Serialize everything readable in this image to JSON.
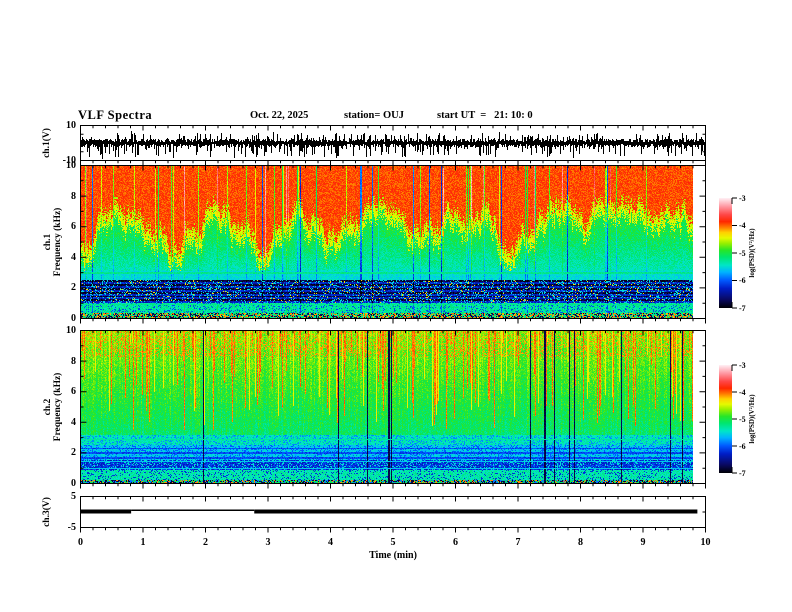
{
  "header": {
    "title": "VLF Spectra",
    "date": "Oct. 22, 2025",
    "station": "station= OUJ",
    "start_ut": "start UT  =   21: 10: 0"
  },
  "panels": {
    "ch1_wave": {
      "ylabel": "ch.1(V)",
      "yticks": [
        10,
        -10
      ],
      "ylim": [
        -10,
        10
      ]
    },
    "ch1_spec": {
      "ylabel_line1": "ch.1",
      "ylabel_line2": "Frequency (kHz)",
      "yticks": [
        10,
        8,
        6,
        4,
        2,
        0
      ],
      "ylim": [
        0,
        10
      ]
    },
    "ch2_spec": {
      "ylabel_line1": "ch.2",
      "ylabel_line2": "Frequency (kHz)",
      "yticks": [
        10,
        8,
        6,
        4,
        2,
        0
      ],
      "ylim": [
        0,
        10
      ]
    },
    "ch3_wave": {
      "ylabel": "ch.3(V)",
      "yticks": [
        5,
        -5
      ],
      "ylim": [
        -5,
        5
      ]
    }
  },
  "xaxis": {
    "label": "Time (min)",
    "ticks": [
      0,
      1,
      2,
      3,
      4,
      5,
      6,
      7,
      8,
      9,
      10
    ],
    "minor_step": 0.2
  },
  "colorbar": {
    "label": "log(PSD)(V²/Hz)",
    "ticks": [
      -3,
      -4,
      -5,
      -6,
      -7
    ],
    "range": [
      -3,
      -7
    ]
  },
  "colors": {
    "frame": "#000000",
    "scale_white": "#ffebf0",
    "scale_red": "#ff2800",
    "scale_yellow": "#e6fa00",
    "scale_green": "#28e628",
    "scale_cyan": "#00b4ff",
    "scale_blue": "#005aff",
    "scale_black": "#00000a"
  },
  "chart_data": {
    "type": "heatmap",
    "title": "VLF Spectra",
    "date": "Oct. 22, 2025",
    "station": "OUJ",
    "start_ut": "21: 10: 0",
    "xlabel": "Time (min)",
    "xlim": [
      0,
      10
    ],
    "x_data_end_min": 9.8,
    "xtick_major_step": 1,
    "xtick_minor_step": 0.2,
    "grid": false,
    "legend_position": "right colorbars",
    "colorbar": {
      "label": "log(PSD)(V²/Hz)",
      "ticks": [
        -3,
        -4,
        -5,
        -6,
        -7
      ],
      "range_top_to_bottom": [
        -3,
        -7
      ]
    },
    "panels": [
      {
        "name": "ch.1 time series",
        "type": "line",
        "ylabel": "ch.1(V)",
        "ylim": [
          -10,
          10
        ],
        "signal": "dense zero-mean black noise ~±2 V with frequent spikes to ±9 V over 0–9.8 min"
      },
      {
        "name": "ch.1 spectrogram",
        "type": "heatmap",
        "ylabel": "Frequency (kHz)",
        "ylim": [
          0,
          10
        ],
        "clim_log_psd": [
          -7,
          -3
        ],
        "bands": [
          {
            "freq_khz": [
              6,
              10
            ],
            "log_psd": -3.8,
            "appearance": "solid red with sparse green/yellow and dark vertical streaks"
          },
          {
            "freq_khz": [
              4.5,
              6
            ],
            "log_psd": -4.4,
            "appearance": "yellow-green jagged mountain silhouette, peaks 4.5–7.5 kHz"
          },
          {
            "freq_khz": [
              3,
              4.5
            ],
            "log_psd": -4.9,
            "appearance": "green"
          },
          {
            "freq_khz": [
              2.5,
              3
            ],
            "log_psd": -5.3,
            "appearance": "green-cyan, thin light horizontal line near 3 kHz"
          },
          {
            "freq_khz": [
              1,
              2.5
            ],
            "log_psd": -6.2,
            "appearance": "blue with darker horizontal banding"
          },
          {
            "freq_khz": [
              0.4,
              1
            ],
            "log_psd": -5.2,
            "appearance": "green-cyan"
          },
          {
            "freq_khz": [
              0,
              0.4
            ],
            "log_psd": -5.5,
            "appearance": "speckled red/dark hum line at bottom"
          }
        ]
      },
      {
        "name": "ch.2 spectrogram",
        "type": "heatmap",
        "ylabel": "Frequency (kHz)",
        "ylim": [
          0,
          10
        ],
        "clim_log_psd": [
          -7,
          -3
        ],
        "bands": [
          {
            "freq_khz": [
              6,
              10
            ],
            "log_psd": -4.5,
            "appearance": "yellow-green with dense red/orange vertical streaks"
          },
          {
            "freq_khz": [
              3,
              6
            ],
            "log_psd": -5.0,
            "appearance": "green with yellow vertical streaks"
          },
          {
            "freq_khz": [
              1.6,
              3
            ],
            "log_psd": -5.5,
            "appearance": "green-cyan with blue speckled rows"
          },
          {
            "freq_khz": [
              0.9,
              1.6
            ],
            "log_psd": -6.0,
            "appearance": "blue band"
          },
          {
            "freq_khz": [
              0.25,
              0.9
            ],
            "log_psd": -5.3,
            "appearance": "green-cyan, cyan lines near 1.0 and 1.45 kHz"
          },
          {
            "freq_khz": [
              0,
              0.25
            ],
            "log_psd": -6.0,
            "appearance": "speckled dark/blue/red"
          }
        ]
      },
      {
        "name": "ch.3 level",
        "type": "step",
        "ylabel": "ch.3(V)",
        "ylim": [
          -5,
          5
        ],
        "segments": [
          {
            "t_min": [
              0,
              0.81
            ],
            "state": "thick bar near 0.3 V"
          },
          {
            "t_min": [
              0.81,
              2.78
            ],
            "state": "thin line near 0.3 V"
          },
          {
            "t_min": [
              2.78,
              9.87
            ],
            "state": "thick bar near 0.3 V"
          }
        ]
      }
    ]
  }
}
